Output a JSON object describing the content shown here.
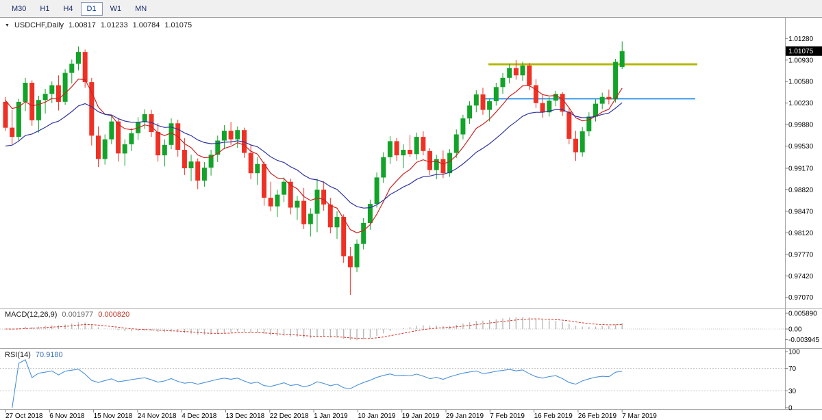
{
  "toolbar": {
    "timeframes": [
      {
        "label": "M30",
        "selected": false
      },
      {
        "label": "H1",
        "selected": false
      },
      {
        "label": "H4",
        "selected": false
      },
      {
        "label": "D1",
        "selected": true
      },
      {
        "label": "W1",
        "selected": false
      },
      {
        "label": "MN",
        "selected": false
      }
    ]
  },
  "chart": {
    "menu_icon": "▼",
    "symbol": "USDCHF,Daily",
    "ohlc": {
      "open": "1.00817",
      "high": "1.01233",
      "low": "1.00784",
      "close": "1.01075"
    },
    "current_price": "1.01075"
  },
  "indicators": {
    "macd": {
      "label": "MACD(12,26,9)",
      "value_main": "0.001977",
      "value_signal": "0.000820"
    },
    "rsi": {
      "label": "RSI(14)",
      "value": "70.9180"
    }
  },
  "colors": {
    "up": "#12a329",
    "down": "#ee3124",
    "macd_hist": "#b8b8b8",
    "macd_signal": "#d93025",
    "rsi": "#4a90d9",
    "panel_border": "#a6a6a6",
    "tick": "#808080",
    "axis_text": "#000000",
    "current_price_bg": "#000000",
    "current_price_text": "#ffffff",
    "level_dotted": "#c0c0c0"
  },
  "chart_data": {
    "type": "candlestick",
    "symbol": "USDCHF",
    "timeframe": "Daily",
    "ylim": [
      0.969,
      1.0135
    ],
    "columns": [
      "date",
      "open",
      "high",
      "low",
      "close"
    ],
    "candles": [
      [
        "2018.10.26",
        1.0025,
        1.0033,
        0.9978,
        0.9983
      ],
      [
        "2018.10.29",
        0.9983,
        1.0012,
        0.9956,
        0.9968
      ],
      [
        "2018.10.30",
        0.9968,
        1.003,
        0.9962,
        1.0025
      ],
      [
        "2018.10.31",
        1.0025,
        1.0064,
        1.001,
        1.0056
      ],
      [
        "2018.11.01",
        1.0056,
        1.006,
        0.9986,
        0.9995
      ],
      [
        "2018.11.02",
        0.9995,
        1.0035,
        0.9975,
        1.0028
      ],
      [
        "2018.11.05",
        1.0028,
        1.0046,
        1.0006,
        1.0038
      ],
      [
        "2018.11.06",
        1.0038,
        1.0058,
        1.0023,
        1.0052
      ],
      [
        "2018.11.07",
        1.0052,
        1.0068,
        1.0011,
        1.0025
      ],
      [
        "2018.11.08",
        1.0025,
        1.0078,
        1.002,
        1.0072
      ],
      [
        "2018.11.09",
        1.0072,
        1.0094,
        1.0055,
        1.0087
      ],
      [
        "2018.11.12",
        1.0087,
        1.0115,
        1.0076,
        1.0106
      ],
      [
        "2018.11.13",
        1.0106,
        1.011,
        1.0048,
        1.0057
      ],
      [
        "2018.11.14",
        1.0057,
        1.0064,
        0.9954,
        0.997
      ],
      [
        "2018.11.15",
        0.997,
        0.9985,
        0.9919,
        0.9932
      ],
      [
        "2018.11.16",
        0.9932,
        0.9972,
        0.9923,
        0.9964
      ],
      [
        "2018.11.19",
        0.9964,
        1.0004,
        0.9956,
        0.9993
      ],
      [
        "2018.11.20",
        0.9993,
        0.9998,
        0.9928,
        0.9941
      ],
      [
        "2018.11.21",
        0.9941,
        0.9964,
        0.9921,
        0.9956
      ],
      [
        "2018.11.22",
        0.9956,
        0.9982,
        0.9945,
        0.9974
      ],
      [
        "2018.11.23",
        0.9974,
        1.0,
        0.9963,
        0.9992
      ],
      [
        "2018.11.26",
        0.9992,
        1.0013,
        0.9981,
        1.0005
      ],
      [
        "2018.11.27",
        1.0005,
        1.0012,
        0.9968,
        0.9976
      ],
      [
        "2018.11.28",
        0.9976,
        0.999,
        0.9928,
        0.9938
      ],
      [
        "2018.11.29",
        0.9938,
        0.9964,
        0.992,
        0.9955
      ],
      [
        "2018.11.30",
        0.9955,
        0.9998,
        0.9948,
        0.999
      ],
      [
        "2018.12.03",
        0.999,
        0.9996,
        0.9936,
        0.9947
      ],
      [
        "2018.12.04",
        0.9947,
        0.9966,
        0.9906,
        0.9917
      ],
      [
        "2018.12.05",
        0.9917,
        0.9939,
        0.9896,
        0.9928
      ],
      [
        "2018.12.06",
        0.9928,
        0.9933,
        0.9883,
        0.9897
      ],
      [
        "2018.12.07",
        0.9897,
        0.9927,
        0.9887,
        0.9918
      ],
      [
        "2018.12.10",
        0.9918,
        0.9947,
        0.9905,
        0.9939
      ],
      [
        "2018.12.11",
        0.9939,
        0.997,
        0.9927,
        0.9962
      ],
      [
        "2018.12.12",
        0.9962,
        0.9987,
        0.9948,
        0.9978
      ],
      [
        "2018.12.13",
        0.9978,
        0.9992,
        0.9955,
        0.9964
      ],
      [
        "2018.12.14",
        0.9964,
        0.9985,
        0.995,
        0.9979
      ],
      [
        "2018.12.17",
        0.9979,
        0.9983,
        0.9934,
        0.9942
      ],
      [
        "2018.12.18",
        0.9942,
        0.9956,
        0.9899,
        0.9909
      ],
      [
        "2018.12.19",
        0.9909,
        0.9935,
        0.989,
        0.9924
      ],
      [
        "2018.12.20",
        0.9924,
        0.9928,
        0.9856,
        0.9869
      ],
      [
        "2018.12.21",
        0.9869,
        0.9895,
        0.9847,
        0.9855
      ],
      [
        "2018.12.24",
        0.9855,
        0.9882,
        0.9838,
        0.9874
      ],
      [
        "2018.12.26",
        0.9874,
        0.9902,
        0.9862,
        0.9895
      ],
      [
        "2018.12.27",
        0.9895,
        0.99,
        0.9842,
        0.9853
      ],
      [
        "2018.12.28",
        0.9853,
        0.9872,
        0.9833,
        0.9864
      ],
      [
        "2018.12.31",
        0.9864,
        0.9885,
        0.9818,
        0.9826
      ],
      [
        "2019.01.02",
        0.9826,
        0.9852,
        0.9806,
        0.9843
      ],
      [
        "2019.01.03",
        0.9843,
        0.99,
        0.9813,
        0.9882
      ],
      [
        "2019.01.04",
        0.9882,
        0.9896,
        0.9848,
        0.9858
      ],
      [
        "2019.01.07",
        0.9858,
        0.9869,
        0.9811,
        0.9821
      ],
      [
        "2019.01.08",
        0.9821,
        0.9847,
        0.9802,
        0.9838
      ],
      [
        "2019.01.09",
        0.9838,
        0.9842,
        0.9763,
        0.9774
      ],
      [
        "2019.01.10",
        0.9774,
        0.9789,
        0.9711,
        0.9756
      ],
      [
        "2019.01.11",
        0.9756,
        0.9801,
        0.9748,
        0.9794
      ],
      [
        "2019.01.14",
        0.9794,
        0.9836,
        0.9785,
        0.9828
      ],
      [
        "2019.01.15",
        0.9828,
        0.9866,
        0.9817,
        0.9859
      ],
      [
        "2019.01.16",
        0.9859,
        0.991,
        0.9853,
        0.9902
      ],
      [
        "2019.01.17",
        0.9902,
        0.9943,
        0.9893,
        0.9935
      ],
      [
        "2019.01.18",
        0.9935,
        0.9969,
        0.9924,
        0.9961
      ],
      [
        "2019.01.21",
        0.9961,
        0.9966,
        0.9929,
        0.9938
      ],
      [
        "2019.01.22",
        0.9938,
        0.9956,
        0.9917,
        0.9947
      ],
      [
        "2019.01.23",
        0.9947,
        0.9971,
        0.9935,
        0.994
      ],
      [
        "2019.01.24",
        0.994,
        0.9975,
        0.9931,
        0.9968
      ],
      [
        "2019.01.25",
        0.9968,
        0.9977,
        0.9938,
        0.9945
      ],
      [
        "2019.01.28",
        0.9945,
        0.995,
        0.9906,
        0.9914
      ],
      [
        "2019.01.29",
        0.9914,
        0.9939,
        0.9899,
        0.9932
      ],
      [
        "2019.01.30",
        0.9932,
        0.9946,
        0.9901,
        0.9909
      ],
      [
        "2019.01.31",
        0.9909,
        0.9948,
        0.9903,
        0.9942
      ],
      [
        "2019.02.01",
        0.9942,
        0.998,
        0.9934,
        0.9972
      ],
      [
        "2019.02.04",
        0.9972,
        1.0004,
        0.9964,
        0.9998
      ],
      [
        "2019.02.05",
        0.9998,
        1.0026,
        0.9989,
        1.0019
      ],
      [
        "2019.02.06",
        1.0019,
        1.0044,
        1.0008,
        1.0037
      ],
      [
        "2019.02.07",
        1.0037,
        1.0048,
        1.0004,
        1.0012
      ],
      [
        "2019.02.08",
        1.0012,
        1.0031,
        0.9993,
        1.0026
      ],
      [
        "2019.02.11",
        1.0026,
        1.0056,
        1.0019,
        1.0049
      ],
      [
        "2019.02.12",
        1.0049,
        1.0072,
        1.0038,
        1.0064
      ],
      [
        "2019.02.13",
        1.0064,
        1.0087,
        1.0055,
        1.008
      ],
      [
        "2019.02.14",
        1.008,
        1.0093,
        1.0061,
        1.0068
      ],
      [
        "2019.02.15",
        1.0068,
        1.009,
        1.0059,
        1.0084
      ],
      [
        "2019.02.18",
        1.0084,
        1.0088,
        1.0044,
        1.0052
      ],
      [
        "2019.02.19",
        1.0052,
        1.0062,
        1.0015,
        1.0023
      ],
      [
        "2019.02.20",
        1.0023,
        1.0038,
        0.9999,
        1.0008
      ],
      [
        "2019.02.21",
        1.0008,
        1.0033,
        1.0001,
        1.0027
      ],
      [
        "2019.02.22",
        1.0027,
        1.0043,
        1.0018,
        1.0038
      ],
      [
        "2019.02.25",
        1.0038,
        1.0041,
        1.0002,
        1.0009
      ],
      [
        "2019.02.26",
        1.0009,
        1.0016,
        0.9956,
        0.9965
      ],
      [
        "2019.02.27",
        0.9965,
        0.9978,
        0.9929,
        0.9943
      ],
      [
        "2019.02.28",
        0.9943,
        0.9984,
        0.9936,
        0.9977
      ],
      [
        "2019.03.01",
        0.9977,
        1.0008,
        0.9969,
        1.0001
      ],
      [
        "2019.03.04",
        1.0001,
        1.0029,
        0.9993,
        1.0022
      ],
      [
        "2019.03.05",
        1.0022,
        1.004,
        1.0013,
        1.0033
      ],
      [
        "2019.03.06",
        1.0033,
        1.0045,
        1.0021,
        1.0029
      ],
      [
        "2019.03.07",
        1.0029,
        1.0095,
        1.0024,
        1.009
      ],
      [
        "2019.03.08",
        1.00817,
        1.01233,
        1.00784,
        1.01075
      ]
    ],
    "price_ticks": [
      "1.01280",
      "1.00930",
      "1.00580",
      "1.00230",
      "0.99880",
      "0.99530",
      "0.99170",
      "0.98820",
      "0.98470",
      "0.98120",
      "0.97770",
      "0.97420",
      "0.97070"
    ],
    "macd_ticks": [
      "0.005890",
      "0.00",
      "-0.003945"
    ],
    "rsi_ticks": [
      "100",
      "70",
      "30",
      "0"
    ],
    "time_labels": [
      "27 Oct 2018",
      "6 Nov 2018",
      "15 Nov 2018",
      "24 Nov 2018",
      "4 Dec 2018",
      "13 Dec 2018",
      "22 Dec 2018",
      "1 Jan 2019",
      "10 Jan 2019",
      "19 Jan 2019",
      "29 Jan 2019",
      "7 Feb 2019",
      "16 Feb 2019",
      "26 Feb 2019",
      "7 Mar 2019"
    ],
    "overlays": {
      "ma_fast": {
        "type": "ema",
        "period": 8,
        "color": "#cc2222"
      },
      "ma_slow": {
        "type": "ema",
        "period": 20,
        "color": "#3034a0"
      },
      "trendlines": [
        {
          "name": "resistance",
          "price": 1.0086,
          "x1": 713,
          "x2": 1018,
          "color": "#b5b800",
          "width": 3
        },
        {
          "name": "support",
          "price": 1.003,
          "x1": 705,
          "x2": 1015,
          "color": "#3498e8",
          "width": 2
        }
      ]
    },
    "indicator_data": {
      "macd": {
        "fast": 12,
        "slow": 26,
        "signal": 9,
        "last_main": 0.001977,
        "last_signal": 0.00082
      },
      "rsi": {
        "period": 14,
        "last": 70.918,
        "levels": [
          70,
          30
        ]
      }
    }
  }
}
